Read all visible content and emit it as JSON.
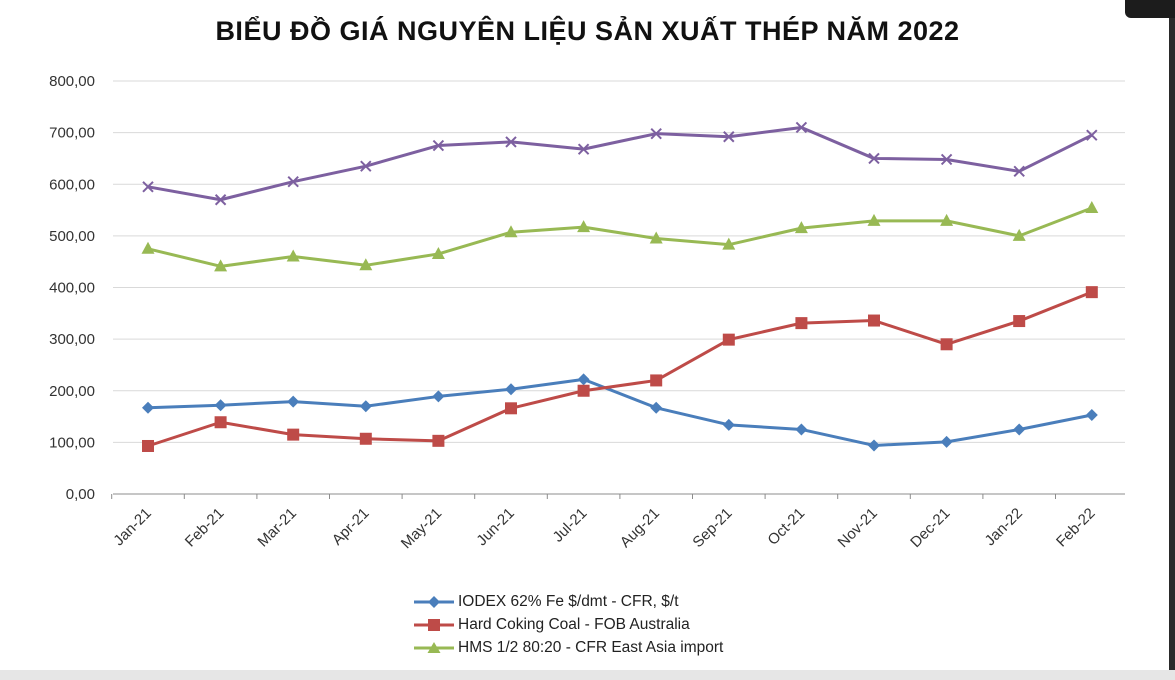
{
  "chart_data": {
    "type": "line",
    "title": "BIỂU ĐỒ GIÁ NGUYÊN LIỆU SẢN XUẤT THÉP NĂM 2022",
    "categories": [
      "Jan-21",
      "Feb-21",
      "Mar-21",
      "Apr-21",
      "May-21",
      "Jun-21",
      "Jul-21",
      "Aug-21",
      "Sep-21",
      "Oct-21",
      "Nov-21",
      "Dec-21",
      "Jan-22",
      "Feb-22"
    ],
    "y_ticks": [
      "0,00",
      "100,00",
      "200,00",
      "300,00",
      "400,00",
      "500,00",
      "600,00",
      "700,00",
      "800,00"
    ],
    "ylim": [
      0,
      800
    ],
    "grid": true,
    "legend_position": "bottom",
    "series": [
      {
        "name": "IODEX 62% Fe $/dmt - CFR, $/t",
        "color": "#4a7ebb",
        "marker": "diamond",
        "values": [
          167,
          172,
          179,
          170,
          189,
          203,
          222,
          167,
          134,
          125,
          94,
          101,
          125,
          153
        ]
      },
      {
        "name": "Hard Coking Coal - FOB Australia",
        "color": "#be4b48",
        "marker": "square",
        "values": [
          93,
          139,
          115,
          107,
          103,
          166,
          200,
          220,
          299,
          331,
          336,
          290,
          335,
          391
        ]
      },
      {
        "name": "HMS 1/2 80:20 - CFR East Asia import",
        "color": "#98b954",
        "marker": "triangle",
        "values": [
          475,
          441,
          460,
          443,
          465,
          507,
          517,
          495,
          483,
          515,
          529,
          529,
          500,
          554
        ]
      },
      {
        "name": "",
        "color": "#7d60a0",
        "marker": "x",
        "values": [
          595,
          570,
          605,
          635,
          675,
          682,
          668,
          698,
          692,
          710,
          650,
          648,
          625,
          695
        ]
      }
    ]
  }
}
